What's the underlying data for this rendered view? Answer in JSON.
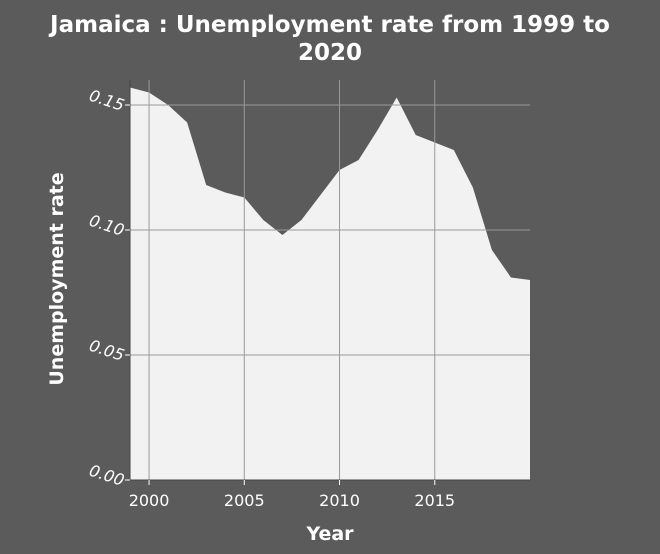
{
  "chart_data": {
    "type": "area",
    "title": "Jamaica : Unemployment rate from 1999 to 2020",
    "title_lines": [
      "Jamaica : Unemployment rate from 1999 to",
      "2020"
    ],
    "xlabel": "Year",
    "ylabel": "Unemployment rate",
    "xlim": [
      1999,
      2020
    ],
    "ylim": [
      0,
      0.16
    ],
    "xticks": [
      2000,
      2005,
      2010,
      2015
    ],
    "yticks": [
      0.0,
      0.05,
      0.1,
      0.15
    ],
    "ytick_labels": [
      "0.00",
      "0.05",
      "0.10",
      "0.15"
    ],
    "grid": true,
    "colors": {
      "background": "#5b5b5b",
      "fill": "#f2f2f2",
      "grid": "#9a9a9a",
      "text": "#ffffff"
    },
    "x": [
      1999,
      2000,
      2001,
      2002,
      2003,
      2004,
      2005,
      2006,
      2007,
      2008,
      2009,
      2010,
      2011,
      2012,
      2013,
      2014,
      2015,
      2016,
      2017,
      2018,
      2019,
      2020
    ],
    "values": [
      0.157,
      0.155,
      0.15,
      0.143,
      0.118,
      0.115,
      0.113,
      0.104,
      0.098,
      0.104,
      0.114,
      0.124,
      0.128,
      0.14,
      0.153,
      0.138,
      0.135,
      0.132,
      0.117,
      0.092,
      0.081,
      0.08
    ]
  }
}
